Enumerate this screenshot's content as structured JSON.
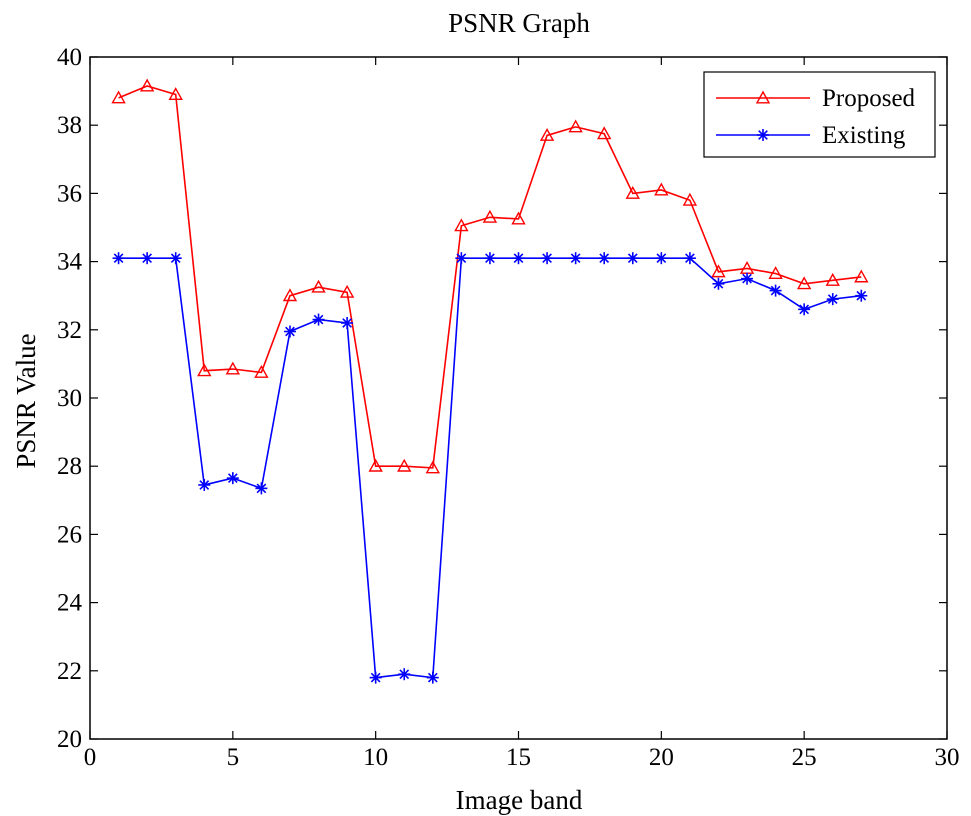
{
  "chart_data": {
    "type": "line",
    "title": "PSNR Graph",
    "xlabel": "Image band",
    "ylabel": "PSNR Value",
    "xlim": [
      0,
      30
    ],
    "ylim": [
      20,
      40
    ],
    "xticks": [
      0,
      5,
      10,
      15,
      20,
      25,
      30
    ],
    "yticks": [
      20,
      22,
      24,
      26,
      28,
      30,
      32,
      34,
      36,
      38,
      40
    ],
    "grid": false,
    "legend_position": "top-right",
    "x": [
      1,
      2,
      3,
      4,
      5,
      6,
      7,
      8,
      9,
      10,
      11,
      12,
      13,
      14,
      15,
      16,
      17,
      18,
      19,
      20,
      21,
      22,
      23,
      24,
      25,
      26,
      27
    ],
    "series": [
      {
        "name": "Proposed",
        "color": "#ff0000",
        "marker": "triangle",
        "values": [
          38.8,
          39.15,
          38.9,
          30.8,
          30.85,
          30.75,
          33.0,
          33.25,
          33.1,
          28.0,
          28.0,
          27.95,
          35.05,
          35.3,
          35.25,
          37.7,
          37.95,
          37.75,
          36.0,
          36.1,
          35.8,
          33.7,
          33.8,
          33.65,
          33.35,
          33.45,
          33.55
        ]
      },
      {
        "name": "Existing",
        "color": "#0000ff",
        "marker": "asterisk",
        "values": [
          34.1,
          34.1,
          34.1,
          27.45,
          27.65,
          27.35,
          31.95,
          32.3,
          32.2,
          21.8,
          21.9,
          21.8,
          34.1,
          34.1,
          34.1,
          34.1,
          34.1,
          34.1,
          34.1,
          34.1,
          34.1,
          33.35,
          33.5,
          33.15,
          32.6,
          32.9,
          33.0
        ]
      }
    ]
  }
}
